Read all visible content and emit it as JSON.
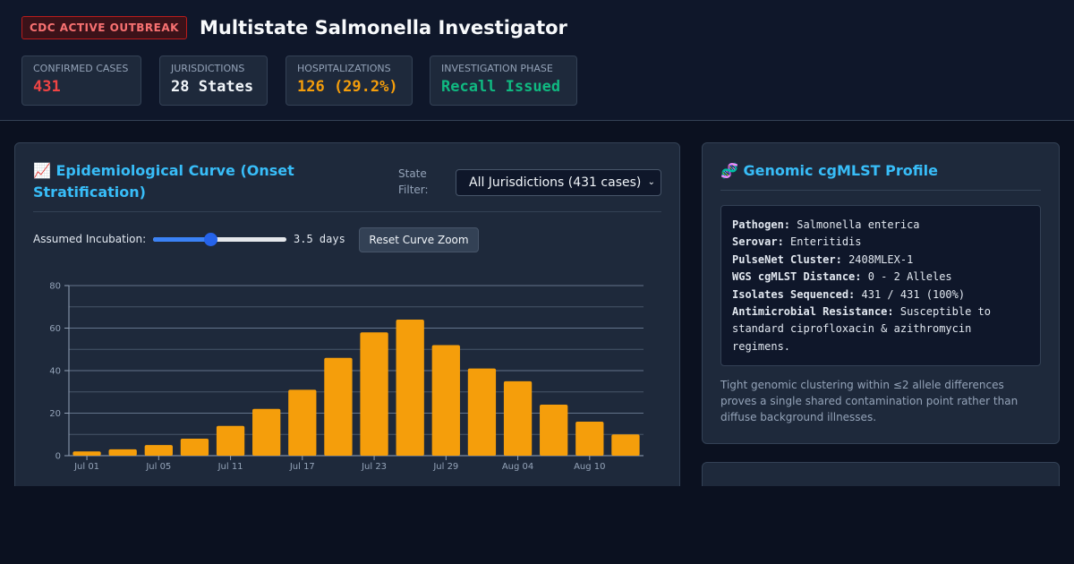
{
  "header": {
    "badge": "CDC ACTIVE OUTBREAK",
    "title": "Multistate Salmonella Investigator"
  },
  "stats": [
    {
      "label": "CONFIRMED CASES",
      "value": "431",
      "color": "#ef4444"
    },
    {
      "label": "JURISDICTIONS",
      "value": "28 States",
      "color": "#f1f5f9"
    },
    {
      "label": "HOSPITALIZATIONS",
      "value": "126 (29.2%)",
      "color": "#f59e0b"
    },
    {
      "label": "INVESTIGATION PHASE",
      "value": "Recall Issued",
      "color": "#10b981"
    }
  ],
  "epi_panel": {
    "title": "📈 Epidemiological Curve (Onset Stratification)",
    "filter_label": "State Filter:",
    "filter_option": "All Jurisdictions (431 cases)",
    "incubation_label": "Assumed Incubation:",
    "incubation_value": "3.5 days",
    "reset_button": "Reset Curve Zoom"
  },
  "chart_data": {
    "type": "bar",
    "color": "#f59e0b",
    "categories": [
      "Jul 01",
      null,
      "Jul 05",
      null,
      "Jul 11",
      null,
      "Jul 17",
      null,
      "Jul 23",
      null,
      "Jul 29",
      null,
      "Aug 04",
      null,
      "Aug 10",
      null
    ],
    "values": [
      2,
      3,
      5,
      8,
      14,
      22,
      31,
      46,
      58,
      64,
      52,
      41,
      35,
      24,
      16,
      10
    ],
    "ylim": [
      0,
      80
    ],
    "yticks": [
      0,
      20,
      40,
      60,
      80
    ],
    "minor_yticks": [
      10,
      30,
      50,
      70
    ],
    "grid": true
  },
  "genomic_panel": {
    "title": "🧬 Genomic cgMLST Profile",
    "rows": [
      {
        "label": "Pathogen:",
        "value": "Salmonella enterica"
      },
      {
        "label": "Serovar:",
        "value": "Enteritidis"
      },
      {
        "label": "PulseNet Cluster:",
        "value": "2408MLEX-1"
      },
      {
        "label": "WGS cgMLST Distance:",
        "value": "0 - 2 Alleles"
      },
      {
        "label": "Isolates Sequenced:",
        "value": "431 / 431 (100%)"
      },
      {
        "label": "Antimicrobial Resistance:",
        "value": "Susceptible to standard ciprofloxacin & azithromycin regimens."
      }
    ],
    "note": "Tight genomic clustering within ≤2 allele differences proves a single shared contamination point rather than diffuse background illnesses."
  }
}
